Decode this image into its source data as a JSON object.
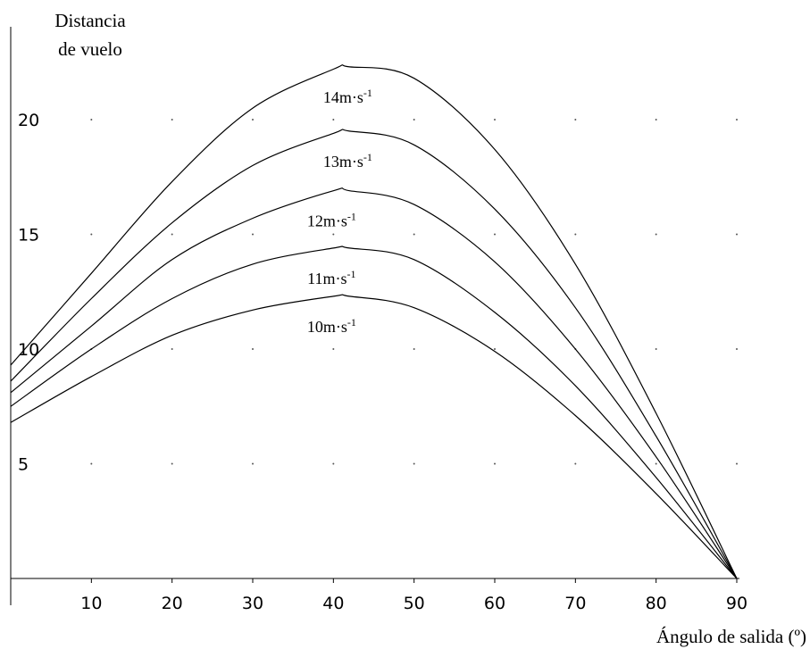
{
  "chart_data": {
    "type": "line",
    "xlabel": "Ángulo de salida (º)",
    "ylabel": [
      "Distancia",
      "de vuelo"
    ],
    "xlim": [
      0,
      90
    ],
    "ylim": [
      0,
      22.6
    ],
    "x_ticks": [
      "10",
      "20",
      "30",
      "40",
      "50",
      "60",
      "70",
      "80",
      "90"
    ],
    "y_ticks": [
      "5",
      "10",
      "15",
      "20"
    ],
    "grid": "dotted",
    "legend": "none",
    "series": [
      {
        "name": "14m·s-1",
        "label_unit": "m·s",
        "label_exp": "-1",
        "label_num": "14",
        "x": [
          0,
          10,
          20,
          30,
          40,
          42,
          50,
          60,
          70,
          80,
          90
        ],
        "y": [
          9.3,
          13.3,
          17.3,
          20.5,
          22.2,
          22.3,
          21.8,
          18.7,
          13.7,
          7.2,
          0
        ]
      },
      {
        "name": "13m·s-1",
        "label_unit": "m·s",
        "label_exp": "-1",
        "label_num": "13",
        "x": [
          0,
          10,
          20,
          30,
          40,
          42,
          50,
          60,
          70,
          80,
          90
        ],
        "y": [
          8.6,
          12.2,
          15.5,
          18.0,
          19.4,
          19.5,
          18.9,
          16.1,
          11.8,
          6.2,
          0
        ]
      },
      {
        "name": "12m·s-1",
        "label_unit": "m·s",
        "label_exp": "-1",
        "label_num": "12",
        "x": [
          0,
          10,
          20,
          30,
          40,
          42,
          50,
          60,
          70,
          80,
          90
        ],
        "y": [
          8.1,
          11.0,
          13.9,
          15.7,
          16.9,
          16.9,
          16.3,
          13.8,
          10.0,
          5.3,
          0
        ]
      },
      {
        "name": "11m·s-1",
        "label_unit": "m·s",
        "label_exp": "-1",
        "label_num": "11",
        "x": [
          0,
          10,
          20,
          30,
          40,
          42,
          50,
          60,
          70,
          80,
          90
        ],
        "y": [
          7.5,
          10.0,
          12.2,
          13.7,
          14.4,
          14.4,
          13.9,
          11.6,
          8.4,
          4.4,
          0
        ]
      },
      {
        "name": "10m·s-1",
        "label_unit": "m·s",
        "label_exp": "-1",
        "label_num": "10",
        "x": [
          0,
          10,
          20,
          30,
          40,
          42,
          50,
          60,
          70,
          80,
          90
        ],
        "y": [
          6.8,
          8.8,
          10.6,
          11.7,
          12.3,
          12.3,
          11.8,
          9.9,
          7.1,
          3.7,
          0
        ]
      }
    ]
  }
}
